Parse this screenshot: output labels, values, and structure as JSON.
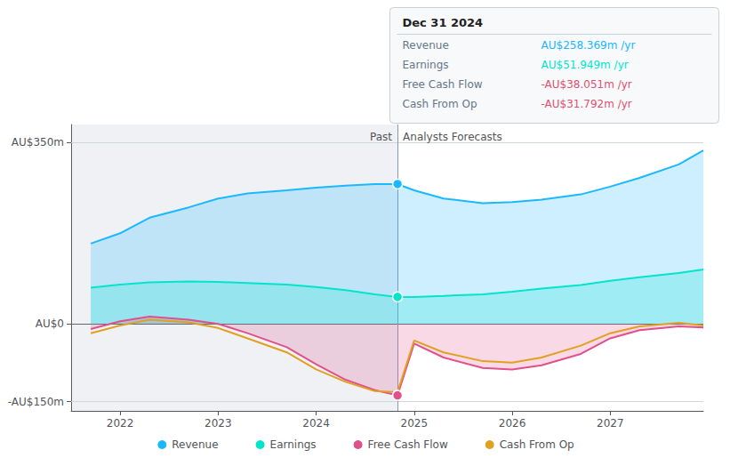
{
  "chart_data": {
    "type": "line",
    "x": [
      2021.7,
      2022.0,
      2022.3,
      2022.7,
      2023.0,
      2023.3,
      2023.7,
      2024.0,
      2024.3,
      2024.6,
      2024.83,
      2025.0,
      2025.3,
      2025.7,
      2026.0,
      2026.3,
      2026.7,
      2027.0,
      2027.3,
      2027.7,
      2027.95
    ],
    "series": [
      {
        "name": "Revenue",
        "color": "#1ab8ff",
        "type": "area",
        "marker": "circle",
        "values": [
          155,
          175,
          205,
          225,
          242,
          252,
          258,
          263,
          267,
          270,
          270,
          258,
          242,
          233,
          235,
          240,
          250,
          265,
          282,
          308,
          335
        ]
      },
      {
        "name": "Earnings",
        "color": "#00e5cc",
        "type": "area",
        "marker": "circle",
        "values": [
          70,
          76,
          80,
          82,
          81,
          79,
          76,
          71,
          65,
          57,
          52,
          52,
          54,
          57,
          62,
          68,
          75,
          83,
          90,
          98,
          105
        ]
      },
      {
        "name": "Free Cash Flow",
        "color": "#e0508a",
        "type": "area",
        "marker": "circle",
        "values": [
          -10,
          5,
          14,
          8,
          0,
          -18,
          -45,
          -78,
          -108,
          -128,
          -138,
          -38,
          -65,
          -85,
          -88,
          -80,
          -58,
          -28,
          -12,
          -5,
          -7
        ]
      },
      {
        "name": "Cash From Op",
        "color": "#e0a020",
        "type": "line",
        "values": [
          -18,
          -3,
          8,
          3,
          -8,
          -28,
          -55,
          -88,
          -112,
          -130,
          -132,
          -32,
          -55,
          -72,
          -75,
          -65,
          -42,
          -18,
          -5,
          2,
          -3
        ]
      }
    ],
    "xlim": [
      2021.5,
      2027.95
    ],
    "xticks": [
      2022,
      2023,
      2024,
      2025,
      2026,
      2027
    ],
    "ylim": [
      -168,
      385
    ],
    "yticks": [
      {
        "value": -150,
        "label": "-AU$150m"
      },
      {
        "value": 0,
        "label": "AU$0"
      },
      {
        "value": 350,
        "label": "AU$350m"
      }
    ],
    "grid": true,
    "legend": "bottom",
    "divider_x": 2024.83,
    "annotations": [
      "Past",
      "Analysts Forecasts"
    ],
    "tooltip": {
      "title": "Dec 31 2024",
      "rows": [
        {
          "label": "Revenue",
          "value": "AU$258.369m /yr",
          "color": "#1ab8ff"
        },
        {
          "label": "Earnings",
          "value": "AU$51.949m /yr",
          "color": "#00e5cc"
        },
        {
          "label": "Free Cash Flow",
          "value": "-AU$38.051m /yr",
          "color": "#e05070"
        },
        {
          "label": "Cash From Op",
          "value": "-AU$31.792m /yr",
          "color": "#e05070"
        }
      ]
    }
  }
}
